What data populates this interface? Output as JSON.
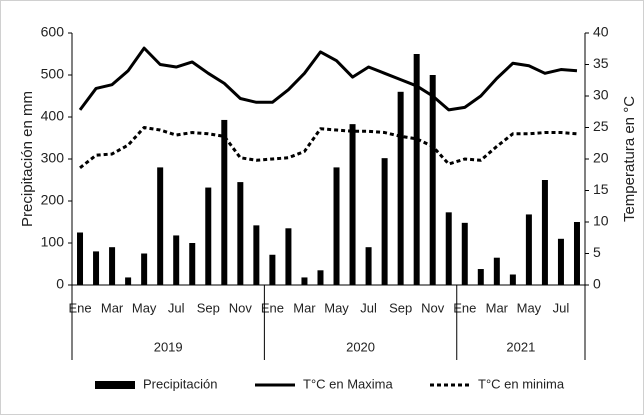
{
  "chart_data": {
    "type": "bar_line",
    "categories": [
      "Ene",
      null,
      "Mar",
      null,
      "May",
      null,
      "Jul",
      null,
      "Sep",
      null,
      "Nov",
      null,
      "Ene",
      null,
      "Mar",
      null,
      "May",
      null,
      "Jul",
      null,
      "Sep",
      null,
      "Nov",
      null,
      "Ene",
      null,
      "Mar",
      null,
      "May",
      null,
      "Jul",
      null
    ],
    "x_groups": [
      {
        "label": "2019",
        "count": 12
      },
      {
        "label": "2020",
        "count": 12
      },
      {
        "label": "2021",
        "count": 8
      }
    ],
    "y_label": "Precipitación en mm",
    "y2_label": "Temperatura en °C",
    "ylim": [
      0,
      600
    ],
    "yticks": [
      0,
      100,
      200,
      300,
      400,
      500,
      600
    ],
    "y2lim": [
      0,
      40
    ],
    "y2ticks": [
      0,
      5,
      10,
      15,
      20,
      25,
      30,
      35,
      40
    ],
    "series": [
      {
        "name": "Precipitación",
        "kind": "bar",
        "color": "#000000",
        "values": [
          125,
          80,
          90,
          18,
          75,
          280,
          118,
          100,
          232,
          393,
          245,
          142,
          72,
          135,
          18,
          35,
          280,
          383,
          90,
          302,
          460,
          550,
          500,
          173,
          148,
          38,
          65,
          25,
          168,
          250,
          110,
          150
        ]
      },
      {
        "name": "T°C en Maxima",
        "kind": "line",
        "style": "solid",
        "axis": "y2",
        "color": "#000000",
        "values": [
          27.8,
          31.2,
          31.8,
          34,
          37.6,
          35,
          34.6,
          35.4,
          33.6,
          32,
          29.6,
          29,
          29,
          31,
          33.6,
          37,
          35.6,
          33,
          34.6,
          33.6,
          32.6,
          31.6,
          30,
          27.8,
          28.2,
          30,
          32.8,
          35.2,
          34.8,
          33.6,
          34.2,
          34
        ]
      },
      {
        "name": "T°C en minima",
        "kind": "line",
        "style": "dotted",
        "axis": "y2",
        "color": "#000000",
        "values": [
          18.6,
          20.6,
          20.8,
          22.2,
          25,
          24.6,
          23.8,
          24.2,
          24,
          23.6,
          20.2,
          19.8,
          20,
          20.2,
          21.2,
          24.8,
          24.6,
          24.4,
          24.4,
          24.2,
          23.6,
          23.2,
          22,
          19.2,
          20,
          19.8,
          22,
          24,
          24,
          24.2,
          24.2,
          24
        ]
      }
    ],
    "legend": "bottom"
  }
}
